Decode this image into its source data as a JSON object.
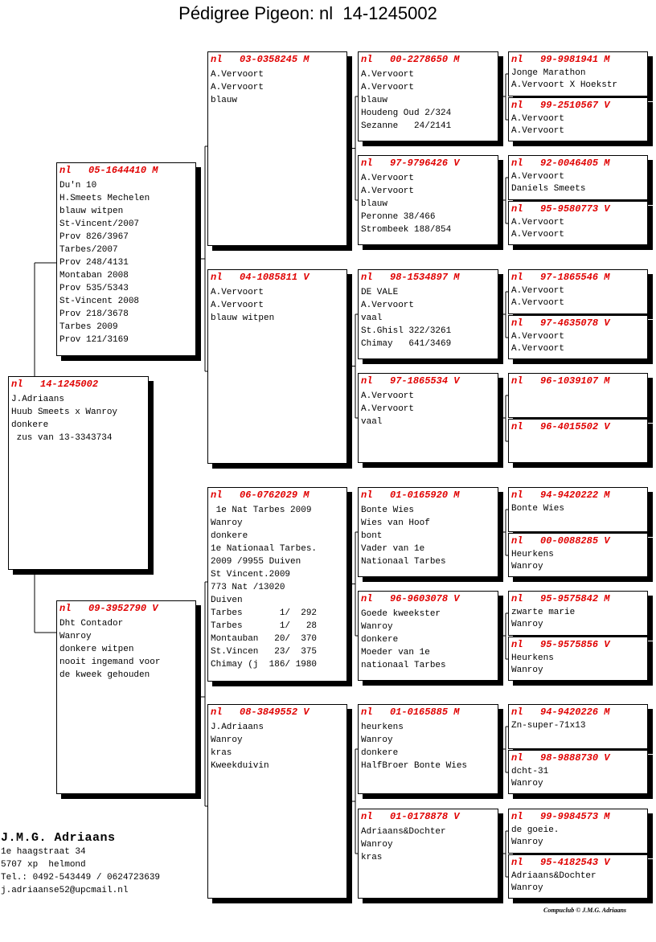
{
  "title": "Pédigree Pigeon: nl  14-1245002",
  "colors": {
    "ring": "#e00000",
    "text": "#000000",
    "shadow": "#000000"
  },
  "subject": {
    "country": "nl",
    "ring": "14-1245002",
    "sex": "",
    "lines": [
      "J.Adriaans",
      "Huub Smeets x Wanroy",
      "donkere",
      " zus van 13-3343734"
    ]
  },
  "gen1": [
    {
      "country": "nl",
      "ring": "05-1644410",
      "sex": "M",
      "lines": [
        "Du'n 10",
        "H.Smeets Mechelen",
        "blauw witpen",
        "St-Vincent/2007",
        "Prov 826/3967",
        "Tarbes/2007",
        "Prov 248/4131",
        "Montaban 2008",
        "Prov 535/5343",
        "St-Vincent 2008",
        "Prov 218/3678",
        "Tarbes 2009",
        "Prov 121/3169"
      ]
    },
    {
      "country": "nl",
      "ring": "09-3952790",
      "sex": "V",
      "lines": [
        "Dht Contador",
        "Wanroy",
        "donkere witpen",
        "nooit ingemand voor",
        "de kweek gehouden"
      ]
    }
  ],
  "gen2": [
    {
      "country": "nl",
      "ring": "03-0358245",
      "sex": "M",
      "lines": [
        "A.Vervoort",
        "A.Vervoort",
        "blauw"
      ]
    },
    {
      "country": "nl",
      "ring": "04-1085811",
      "sex": "V",
      "lines": [
        "A.Vervoort",
        "A.Vervoort",
        "blauw witpen"
      ]
    },
    {
      "country": "nl",
      "ring": "06-0762029",
      "sex": "M",
      "lines": [
        " 1e Nat Tarbes 2009",
        "Wanroy",
        "donkere",
        "1e Nationaal Tarbes.",
        "2009 /9955 Duiven",
        "St Vincent.2009",
        "773 Nat /13020",
        "Duiven",
        "Tarbes       1/  292",
        "Tarbes       1/   28",
        "Montauban   20/  370",
        "St.Vincen   23/  375",
        "Chimay (j  186/ 1980"
      ]
    },
    {
      "country": "nl",
      "ring": "08-3849552",
      "sex": "V",
      "lines": [
        "J.Adriaans",
        "Wanroy",
        "kras",
        "Kweekduivin"
      ]
    }
  ],
  "gen3": [
    {
      "country": "nl",
      "ring": "00-2278650",
      "sex": "M",
      "lines": [
        "A.Vervoort",
        "A.Vervoort",
        "blauw",
        "Houdeng Oud 2/324",
        "Sezanne   24/2141"
      ]
    },
    {
      "country": "nl",
      "ring": "97-9796426",
      "sex": "V",
      "lines": [
        "A.Vervoort",
        "A.Vervoort",
        "blauw",
        "Peronne 38/466",
        "Strombeek 188/854"
      ]
    },
    {
      "country": "nl",
      "ring": "98-1534897",
      "sex": "M",
      "lines": [
        "DE VALE",
        "A.Vervoort",
        "vaal",
        "St.Ghisl 322/3261",
        "Chimay   641/3469"
      ]
    },
    {
      "country": "nl",
      "ring": "97-1865534",
      "sex": "V",
      "lines": [
        "A.Vervoort",
        "A.Vervoort",
        "vaal"
      ]
    },
    {
      "country": "nl",
      "ring": "01-0165920",
      "sex": "M",
      "lines": [
        "Bonte Wies",
        "Wies van Hoof",
        "bont",
        "Vader van 1e",
        "Nationaal Tarbes"
      ]
    },
    {
      "country": "nl",
      "ring": "96-9603078",
      "sex": "V",
      "lines": [
        "Goede kweekster",
        "Wanroy",
        "donkere",
        "Moeder van 1e",
        "nationaal Tarbes"
      ]
    },
    {
      "country": "nl",
      "ring": "01-0165885",
      "sex": "M",
      "lines": [
        "heurkens",
        "Wanroy",
        "donkere",
        "HalfBroer Bonte Wies"
      ]
    },
    {
      "country": "nl",
      "ring": "01-0178878",
      "sex": "V",
      "lines": [
        "Adriaans&Dochter",
        "Wanroy",
        "kras"
      ]
    }
  ],
  "gen4": [
    {
      "country": "nl",
      "ring": "99-9981941",
      "sex": "M",
      "lines": [
        "Jonge Marathon",
        "A.Vervoort X Hoekstr"
      ]
    },
    {
      "country": "nl",
      "ring": "99-2510567",
      "sex": "V",
      "lines": [
        "A.Vervoort",
        "A.Vervoort"
      ]
    },
    {
      "country": "nl",
      "ring": "92-0046405",
      "sex": "M",
      "lines": [
        "A.Vervoort",
        "Daniels Smeets"
      ]
    },
    {
      "country": "nl",
      "ring": "95-9580773",
      "sex": "V",
      "lines": [
        "A.Vervoort",
        "A.Vervoort"
      ]
    },
    {
      "country": "nl",
      "ring": "97-1865546",
      "sex": "M",
      "lines": [
        "A.Vervoort",
        "A.Vervoort"
      ]
    },
    {
      "country": "nl",
      "ring": "97-4635078",
      "sex": "V",
      "lines": [
        "A.Vervoort",
        "A.Vervoort"
      ]
    },
    {
      "country": "nl",
      "ring": "96-1039107",
      "sex": "M",
      "lines": []
    },
    {
      "country": "nl",
      "ring": "96-4015502",
      "sex": "V",
      "lines": []
    },
    {
      "country": "nl",
      "ring": "94-9420222",
      "sex": "M",
      "lines": [
        "Bonte Wies"
      ]
    },
    {
      "country": "nl",
      "ring": "00-0088285",
      "sex": "V",
      "lines": [
        "Heurkens",
        "Wanroy"
      ]
    },
    {
      "country": "nl",
      "ring": "95-9575842",
      "sex": "M",
      "lines": [
        "zwarte marie",
        "Wanroy"
      ]
    },
    {
      "country": "nl",
      "ring": "95-9575856",
      "sex": "V",
      "lines": [
        "Heurkens",
        "Wanroy"
      ]
    },
    {
      "country": "nl",
      "ring": "94-9420226",
      "sex": "M",
      "lines": [
        "Zn-super-71x13"
      ]
    },
    {
      "country": "nl",
      "ring": "98-9888730",
      "sex": "V",
      "lines": [
        "dcht-31",
        "Wanroy"
      ]
    },
    {
      "country": "nl",
      "ring": "99-9984573",
      "sex": "M",
      "lines": [
        "de goeie.",
        "Wanroy"
      ]
    },
    {
      "country": "nl",
      "ring": "95-4182543",
      "sex": "V",
      "lines": [
        "Adriaans&Dochter",
        "Wanroy"
      ]
    }
  ],
  "owner": {
    "name": "J.M.G. Adriaans",
    "address": "1e haagstraat 34",
    "city": "5707 xp  helmond",
    "phone": "Tel.: 0492-543449 / 0624723639",
    "email": "j.adriaanse52@upcmail.nl"
  },
  "credit": "Compuclub © J.M.G. Adriaans"
}
